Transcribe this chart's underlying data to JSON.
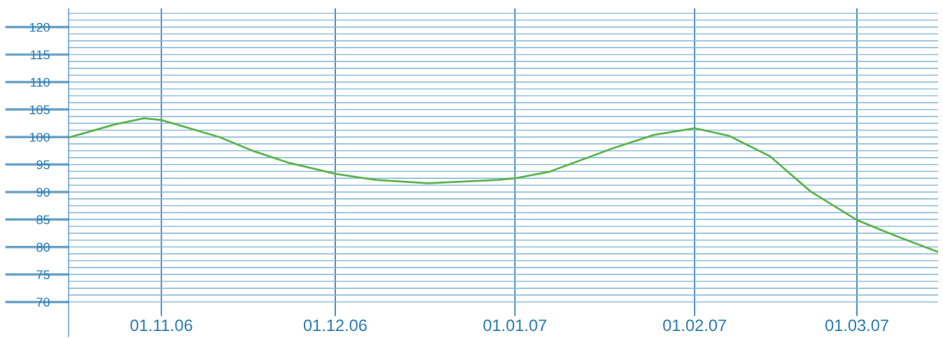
{
  "chart_data": {
    "type": "line",
    "x": [
      "2006-10-16",
      "2006-10-24",
      "2006-10-29",
      "2006-11-01",
      "2006-11-11",
      "2006-11-17",
      "2006-11-23",
      "2006-12-01",
      "2006-12-08",
      "2006-12-17",
      "2006-12-29",
      "2007-01-01",
      "2007-01-07",
      "2007-01-18",
      "2007-01-25",
      "2007-02-01",
      "2007-02-07",
      "2007-02-14",
      "2007-02-21",
      "2007-03-01",
      "2007-03-08",
      "2007-03-15"
    ],
    "series": [
      {
        "color": "#5ab54b",
        "values": [
          99.9,
          102.3,
          103.4,
          103.1,
          100.0,
          97.4,
          95.3,
          93.3,
          92.2,
          91.6,
          92.2,
          92.5,
          93.7,
          98.0,
          100.4,
          101.6,
          100.2,
          96.5,
          90.1,
          84.9,
          81.9,
          79.1
        ]
      }
    ],
    "xlim": [
      "2006-10-16",
      "2007-03-15"
    ],
    "xticks": [
      {
        "value": "2006-11-01",
        "label": "01.11.06"
      },
      {
        "value": "2006-12-01",
        "label": "01.12.06"
      },
      {
        "value": "2007-01-01",
        "label": "01.01.07"
      },
      {
        "value": "2007-02-01",
        "label": "01.02.07"
      },
      {
        "value": "2007-03-01",
        "label": "01.03.07"
      }
    ],
    "ylim": [
      63.7,
      123.4
    ],
    "yticks": [
      70,
      75,
      80,
      85,
      90,
      95,
      100,
      105,
      110,
      115,
      120
    ],
    "grid": true,
    "line_style": "solid"
  }
}
